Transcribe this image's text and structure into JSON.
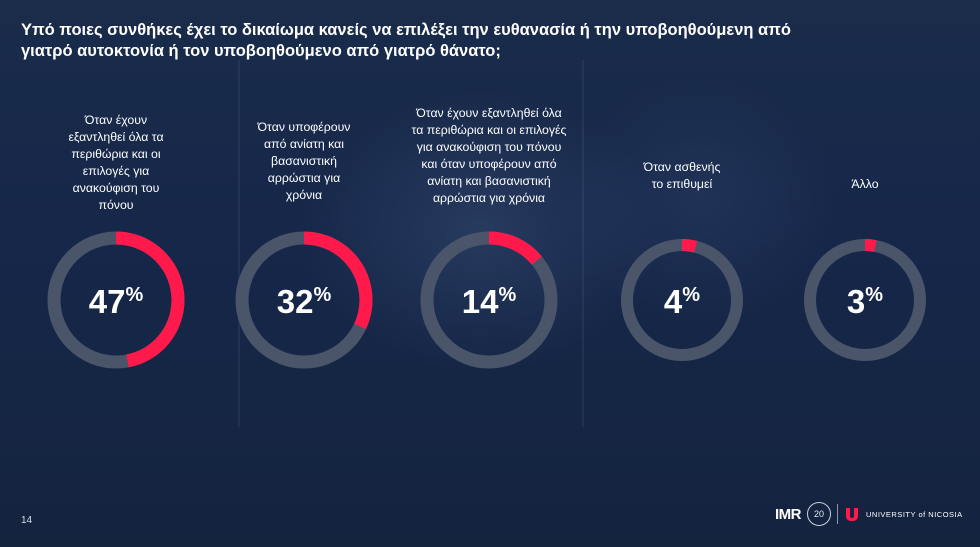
{
  "title_lines": [
    "Υπό ποιες συνθήκες έχει το δικαίωμα κανείς να επιλέξει την ευθανασία ή την υποβοηθούμενη από",
    "γιατρό αυτοκτονία ή τον υποβοηθούμενο από γιατρό θάνατο;"
  ],
  "page_number": "14",
  "logos": {
    "imr": "IMR",
    "anniversary": "20",
    "university": "UNIVERSITY of NICOSIA"
  },
  "colors": {
    "accent": "#ff1a4b",
    "track": "#4b5569",
    "background": "#15253f"
  },
  "chart_data": {
    "type": "donut",
    "title": "Υπό ποιες συνθήκες έχει το δικαίωμα κανείς να επιλέξει την ευθανασία ή την υποβοηθούμενη από γιατρό αυτοκτονία ή τον υποβοηθούμενο από γιατρό θάνατο;",
    "unit": "%",
    "items": [
      {
        "label": "Όταν έχουν εξαντληθεί όλα τα περιθώρια και οι επιλογές για ανακούφιση του πόνου",
        "label_lines": [
          "Όταν έχουν",
          "εξαντληθεί όλα τα",
          "περιθώρια και οι",
          "επιλογές για",
          "ανακούφιση του",
          "πόνου"
        ],
        "value": 47
      },
      {
        "label": "Όταν υποφέρουν από ανίατη και βασανιστική αρρώστια για χρόνια",
        "label_lines": [
          "Όταν υποφέρουν",
          "από ανίατη και",
          "βασανιστική",
          "αρρώστια για",
          "χρόνια"
        ],
        "value": 32
      },
      {
        "label": "Όταν έχουν εξαντληθεί όλα τα περιθώρια και οι επιλογές για ανακούφιση του πόνου και όταν υποφέρουν από ανίατη και βασανιστική αρρώστια για χρόνια",
        "label_lines": [
          "Όταν έχουν εξαντληθεί όλα",
          "τα περιθώρια και οι επιλογές",
          "για ανακούφιση του πόνου",
          "και όταν υποφέρουν από",
          "ανίατη και βασανιστική",
          "αρρώστια για χρόνια"
        ],
        "value": 14
      },
      {
        "label": "Όταν ασθενής το επιθυμεί",
        "label_lines": [
          "Όταν ασθενής",
          "το επιθυμεί"
        ],
        "value": 4
      },
      {
        "label": "Άλλο",
        "label_lines": [
          "Άλλο"
        ],
        "value": 3
      }
    ]
  }
}
